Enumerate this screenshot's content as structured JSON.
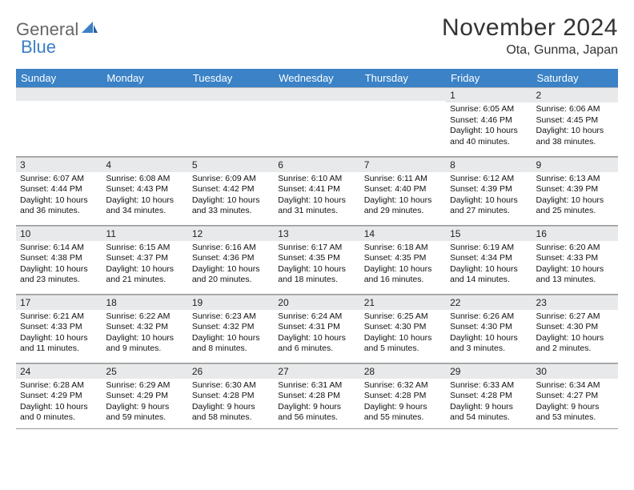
{
  "logo": {
    "part1": "General",
    "part2": "Blue"
  },
  "title": "November 2024",
  "location": "Ota, Gunma, Japan",
  "colors": {
    "header_bg": "#3b82c7",
    "header_text": "#ffffff",
    "daynum_bg": "#e8e9ea",
    "border": "#999999",
    "logo_gray": "#666666",
    "logo_blue": "#3b7fc4",
    "text": "#111111"
  },
  "weekdays": [
    "Sunday",
    "Monday",
    "Tuesday",
    "Wednesday",
    "Thursday",
    "Friday",
    "Saturday"
  ],
  "weeks": [
    [
      {
        "n": "",
        "lines": []
      },
      {
        "n": "",
        "lines": []
      },
      {
        "n": "",
        "lines": []
      },
      {
        "n": "",
        "lines": []
      },
      {
        "n": "",
        "lines": []
      },
      {
        "n": "1",
        "lines": [
          "Sunrise: 6:05 AM",
          "Sunset: 4:46 PM",
          "Daylight: 10 hours and 40 minutes."
        ]
      },
      {
        "n": "2",
        "lines": [
          "Sunrise: 6:06 AM",
          "Sunset: 4:45 PM",
          "Daylight: 10 hours and 38 minutes."
        ]
      }
    ],
    [
      {
        "n": "3",
        "lines": [
          "Sunrise: 6:07 AM",
          "Sunset: 4:44 PM",
          "Daylight: 10 hours and 36 minutes."
        ]
      },
      {
        "n": "4",
        "lines": [
          "Sunrise: 6:08 AM",
          "Sunset: 4:43 PM",
          "Daylight: 10 hours and 34 minutes."
        ]
      },
      {
        "n": "5",
        "lines": [
          "Sunrise: 6:09 AM",
          "Sunset: 4:42 PM",
          "Daylight: 10 hours and 33 minutes."
        ]
      },
      {
        "n": "6",
        "lines": [
          "Sunrise: 6:10 AM",
          "Sunset: 4:41 PM",
          "Daylight: 10 hours and 31 minutes."
        ]
      },
      {
        "n": "7",
        "lines": [
          "Sunrise: 6:11 AM",
          "Sunset: 4:40 PM",
          "Daylight: 10 hours and 29 minutes."
        ]
      },
      {
        "n": "8",
        "lines": [
          "Sunrise: 6:12 AM",
          "Sunset: 4:39 PM",
          "Daylight: 10 hours and 27 minutes."
        ]
      },
      {
        "n": "9",
        "lines": [
          "Sunrise: 6:13 AM",
          "Sunset: 4:39 PM",
          "Daylight: 10 hours and 25 minutes."
        ]
      }
    ],
    [
      {
        "n": "10",
        "lines": [
          "Sunrise: 6:14 AM",
          "Sunset: 4:38 PM",
          "Daylight: 10 hours and 23 minutes."
        ]
      },
      {
        "n": "11",
        "lines": [
          "Sunrise: 6:15 AM",
          "Sunset: 4:37 PM",
          "Daylight: 10 hours and 21 minutes."
        ]
      },
      {
        "n": "12",
        "lines": [
          "Sunrise: 6:16 AM",
          "Sunset: 4:36 PM",
          "Daylight: 10 hours and 20 minutes."
        ]
      },
      {
        "n": "13",
        "lines": [
          "Sunrise: 6:17 AM",
          "Sunset: 4:35 PM",
          "Daylight: 10 hours and 18 minutes."
        ]
      },
      {
        "n": "14",
        "lines": [
          "Sunrise: 6:18 AM",
          "Sunset: 4:35 PM",
          "Daylight: 10 hours and 16 minutes."
        ]
      },
      {
        "n": "15",
        "lines": [
          "Sunrise: 6:19 AM",
          "Sunset: 4:34 PM",
          "Daylight: 10 hours and 14 minutes."
        ]
      },
      {
        "n": "16",
        "lines": [
          "Sunrise: 6:20 AM",
          "Sunset: 4:33 PM",
          "Daylight: 10 hours and 13 minutes."
        ]
      }
    ],
    [
      {
        "n": "17",
        "lines": [
          "Sunrise: 6:21 AM",
          "Sunset: 4:33 PM",
          "Daylight: 10 hours and 11 minutes."
        ]
      },
      {
        "n": "18",
        "lines": [
          "Sunrise: 6:22 AM",
          "Sunset: 4:32 PM",
          "Daylight: 10 hours and 9 minutes."
        ]
      },
      {
        "n": "19",
        "lines": [
          "Sunrise: 6:23 AM",
          "Sunset: 4:32 PM",
          "Daylight: 10 hours and 8 minutes."
        ]
      },
      {
        "n": "20",
        "lines": [
          "Sunrise: 6:24 AM",
          "Sunset: 4:31 PM",
          "Daylight: 10 hours and 6 minutes."
        ]
      },
      {
        "n": "21",
        "lines": [
          "Sunrise: 6:25 AM",
          "Sunset: 4:30 PM",
          "Daylight: 10 hours and 5 minutes."
        ]
      },
      {
        "n": "22",
        "lines": [
          "Sunrise: 6:26 AM",
          "Sunset: 4:30 PM",
          "Daylight: 10 hours and 3 minutes."
        ]
      },
      {
        "n": "23",
        "lines": [
          "Sunrise: 6:27 AM",
          "Sunset: 4:30 PM",
          "Daylight: 10 hours and 2 minutes."
        ]
      }
    ],
    [
      {
        "n": "24",
        "lines": [
          "Sunrise: 6:28 AM",
          "Sunset: 4:29 PM",
          "Daylight: 10 hours and 0 minutes."
        ]
      },
      {
        "n": "25",
        "lines": [
          "Sunrise: 6:29 AM",
          "Sunset: 4:29 PM",
          "Daylight: 9 hours and 59 minutes."
        ]
      },
      {
        "n": "26",
        "lines": [
          "Sunrise: 6:30 AM",
          "Sunset: 4:28 PM",
          "Daylight: 9 hours and 58 minutes."
        ]
      },
      {
        "n": "27",
        "lines": [
          "Sunrise: 6:31 AM",
          "Sunset: 4:28 PM",
          "Daylight: 9 hours and 56 minutes."
        ]
      },
      {
        "n": "28",
        "lines": [
          "Sunrise: 6:32 AM",
          "Sunset: 4:28 PM",
          "Daylight: 9 hours and 55 minutes."
        ]
      },
      {
        "n": "29",
        "lines": [
          "Sunrise: 6:33 AM",
          "Sunset: 4:28 PM",
          "Daylight: 9 hours and 54 minutes."
        ]
      },
      {
        "n": "30",
        "lines": [
          "Sunrise: 6:34 AM",
          "Sunset: 4:27 PM",
          "Daylight: 9 hours and 53 minutes."
        ]
      }
    ]
  ]
}
